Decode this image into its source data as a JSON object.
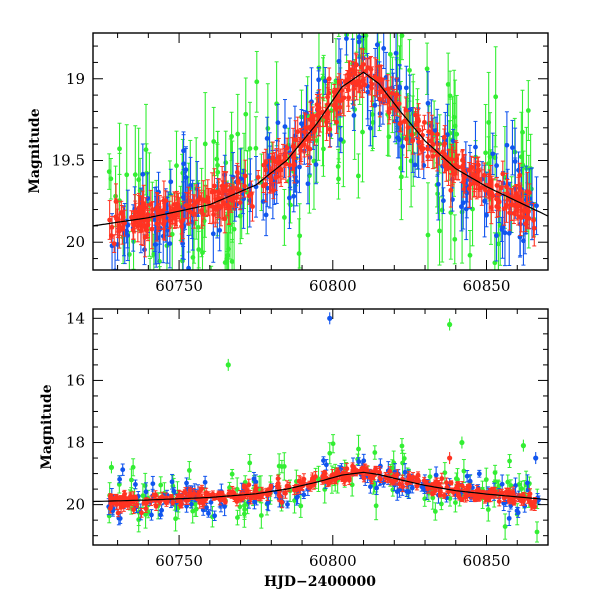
{
  "chart_data": [
    {
      "type": "scatter",
      "panel": "top",
      "ylabel": "Magnitude",
      "xlim": [
        60722,
        60870
      ],
      "ylim": [
        20.17,
        18.72
      ],
      "y_inverted": true,
      "xticks": [
        60750,
        60800,
        60850
      ],
      "xtick_labels": [
        "60750",
        "60800",
        "60850"
      ],
      "yticks": [
        19,
        19.5,
        20
      ],
      "ytick_labels": [
        "19",
        "19.5",
        "20"
      ],
      "grid": false,
      "legend": "none",
      "colors": {
        "green": "#33ee33",
        "blue": "#1155ee",
        "red": "#ff3322",
        "model": "#000000"
      },
      "model_curve": {
        "x": [
          60722,
          60740,
          60760,
          60775,
          60785,
          60795,
          60803,
          60810,
          60815,
          60822,
          60830,
          60840,
          60850,
          60860,
          60870
        ],
        "y": [
          19.9,
          19.85,
          19.77,
          19.65,
          19.5,
          19.27,
          19.05,
          18.96,
          19.03,
          19.2,
          19.38,
          19.55,
          19.66,
          19.75,
          19.84
        ]
      },
      "series": [
        {
          "color": "green",
          "n": 200,
          "sigma": 0.26,
          "err_min": 0.1,
          "err_max": 0.32
        },
        {
          "color": "blue",
          "n": 200,
          "sigma": 0.15,
          "err_min": 0.07,
          "err_max": 0.22
        },
        {
          "color": "red",
          "n": 420,
          "sigma": 0.06,
          "err_min": 0.04,
          "err_max": 0.12
        }
      ]
    },
    {
      "type": "scatter",
      "panel": "bottom",
      "xlabel": "HJD−2400000",
      "ylabel": "Magnitude",
      "xlim": [
        60722,
        60870
      ],
      "ylim": [
        21.3,
        13.7
      ],
      "y_inverted": true,
      "xticks": [
        60750,
        60800,
        60850
      ],
      "xtick_labels": [
        "60750",
        "60800",
        "60850"
      ],
      "yticks": [
        14,
        16,
        18,
        20
      ],
      "ytick_labels": [
        "14",
        "16",
        "18",
        "20"
      ],
      "grid": false,
      "legend": "none",
      "model_curve": {
        "x": [
          60722,
          60740,
          60760,
          60775,
          60785,
          60795,
          60803,
          60810,
          60815,
          60822,
          60830,
          60840,
          60850,
          60860,
          60870
        ],
        "y": [
          19.9,
          19.85,
          19.77,
          19.65,
          19.5,
          19.27,
          19.05,
          18.96,
          19.03,
          19.2,
          19.38,
          19.55,
          19.66,
          19.75,
          19.84
        ]
      },
      "outliers": [
        {
          "color": "green",
          "x": 60766,
          "y": 15.5
        },
        {
          "color": "blue",
          "x": 60799,
          "y": 14.0
        },
        {
          "color": "green",
          "x": 60838,
          "y": 14.2
        },
        {
          "color": "red",
          "x": 60838,
          "y": 18.5
        },
        {
          "color": "green",
          "x": 60842,
          "y": 18.0
        },
        {
          "color": "green",
          "x": 60862,
          "y": 18.1
        },
        {
          "color": "blue",
          "x": 60866,
          "y": 18.5
        },
        {
          "color": "green",
          "x": 60728,
          "y": 18.8
        }
      ],
      "series": [
        {
          "color": "green",
          "n": 130,
          "sigma": 0.45,
          "err_min": 0.15,
          "err_max": 0.45
        },
        {
          "color": "blue",
          "n": 150,
          "sigma": 0.3,
          "err_min": 0.1,
          "err_max": 0.3
        },
        {
          "color": "red",
          "n": 380,
          "sigma": 0.12,
          "err_min": 0.06,
          "err_max": 0.18
        }
      ]
    }
  ]
}
